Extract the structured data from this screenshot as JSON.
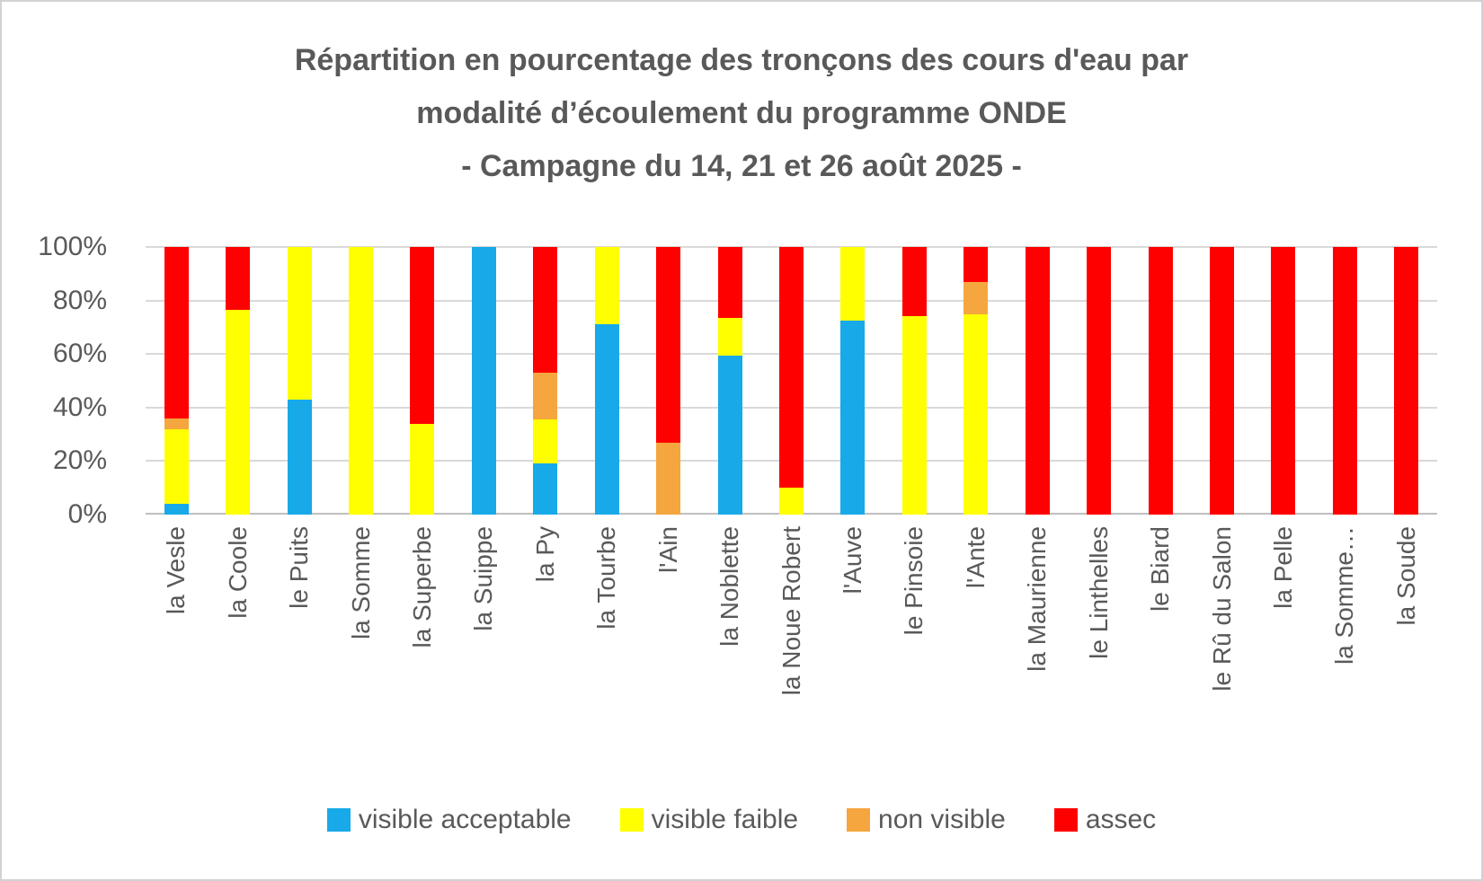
{
  "chart_data": {
    "type": "bar",
    "stacked": true,
    "percent_stacked": true,
    "title_lines": [
      "Répartition en pourcentage des tronçons des cours d'eau par",
      "modalité d’écoulement du programme ONDE",
      "- Campagne du 14, 21 et 26 août 2025 -"
    ],
    "categories": [
      "la Vesle",
      "la Coole",
      "le Puits",
      "la Somme",
      "la Superbe",
      "la Suippe",
      "la Py",
      "la Tourbe",
      "l'Ain",
      "la Noblette",
      "la Noue Robert",
      "l'Auve",
      "le Pinsoie",
      "l'Ante",
      "la Maurienne",
      "le Linthelles",
      "le Biard",
      "le Rû du Salon",
      "la Pelle",
      "la Somme…",
      "la Soude"
    ],
    "series": [
      {
        "name": "visible acceptable",
        "color": "#18A9E8",
        "values": [
          4,
          0,
          43,
          0,
          0,
          100,
          19,
          71,
          0,
          59.5,
          0,
          72.5,
          0,
          0,
          0,
          0,
          0,
          0,
          0,
          0,
          0
        ]
      },
      {
        "name": "visible faible",
        "color": "#FFFF00",
        "values": [
          28,
          76.5,
          57,
          100,
          34,
          0,
          16.5,
          29,
          0,
          14,
          10,
          27.5,
          74,
          75,
          0,
          0,
          0,
          0,
          0,
          0,
          0
        ]
      },
      {
        "name": "non visible",
        "color": "#F5A63E",
        "values": [
          4,
          0,
          0,
          0,
          0,
          0,
          17.5,
          0,
          27,
          0,
          0,
          0,
          0,
          12,
          0,
          0,
          0,
          0,
          0,
          0,
          0
        ]
      },
      {
        "name": "assec",
        "color": "#FF0000",
        "values": [
          64,
          23.5,
          0,
          0,
          66,
          0,
          47,
          0,
          73,
          26.5,
          90,
          0,
          26,
          13,
          100,
          100,
          100,
          100,
          100,
          100,
          100
        ]
      }
    ],
    "y_ticks": [
      "0%",
      "20%",
      "40%",
      "60%",
      "80%",
      "100%"
    ],
    "y_tick_values": [
      0,
      20,
      40,
      60,
      80,
      100
    ],
    "ylim": [
      0,
      100
    ],
    "grid": true,
    "legend_position": "bottom",
    "text_color": "#595959",
    "grid_color": "#D9D9D9",
    "axis_line_color": "#BFBFBF"
  }
}
